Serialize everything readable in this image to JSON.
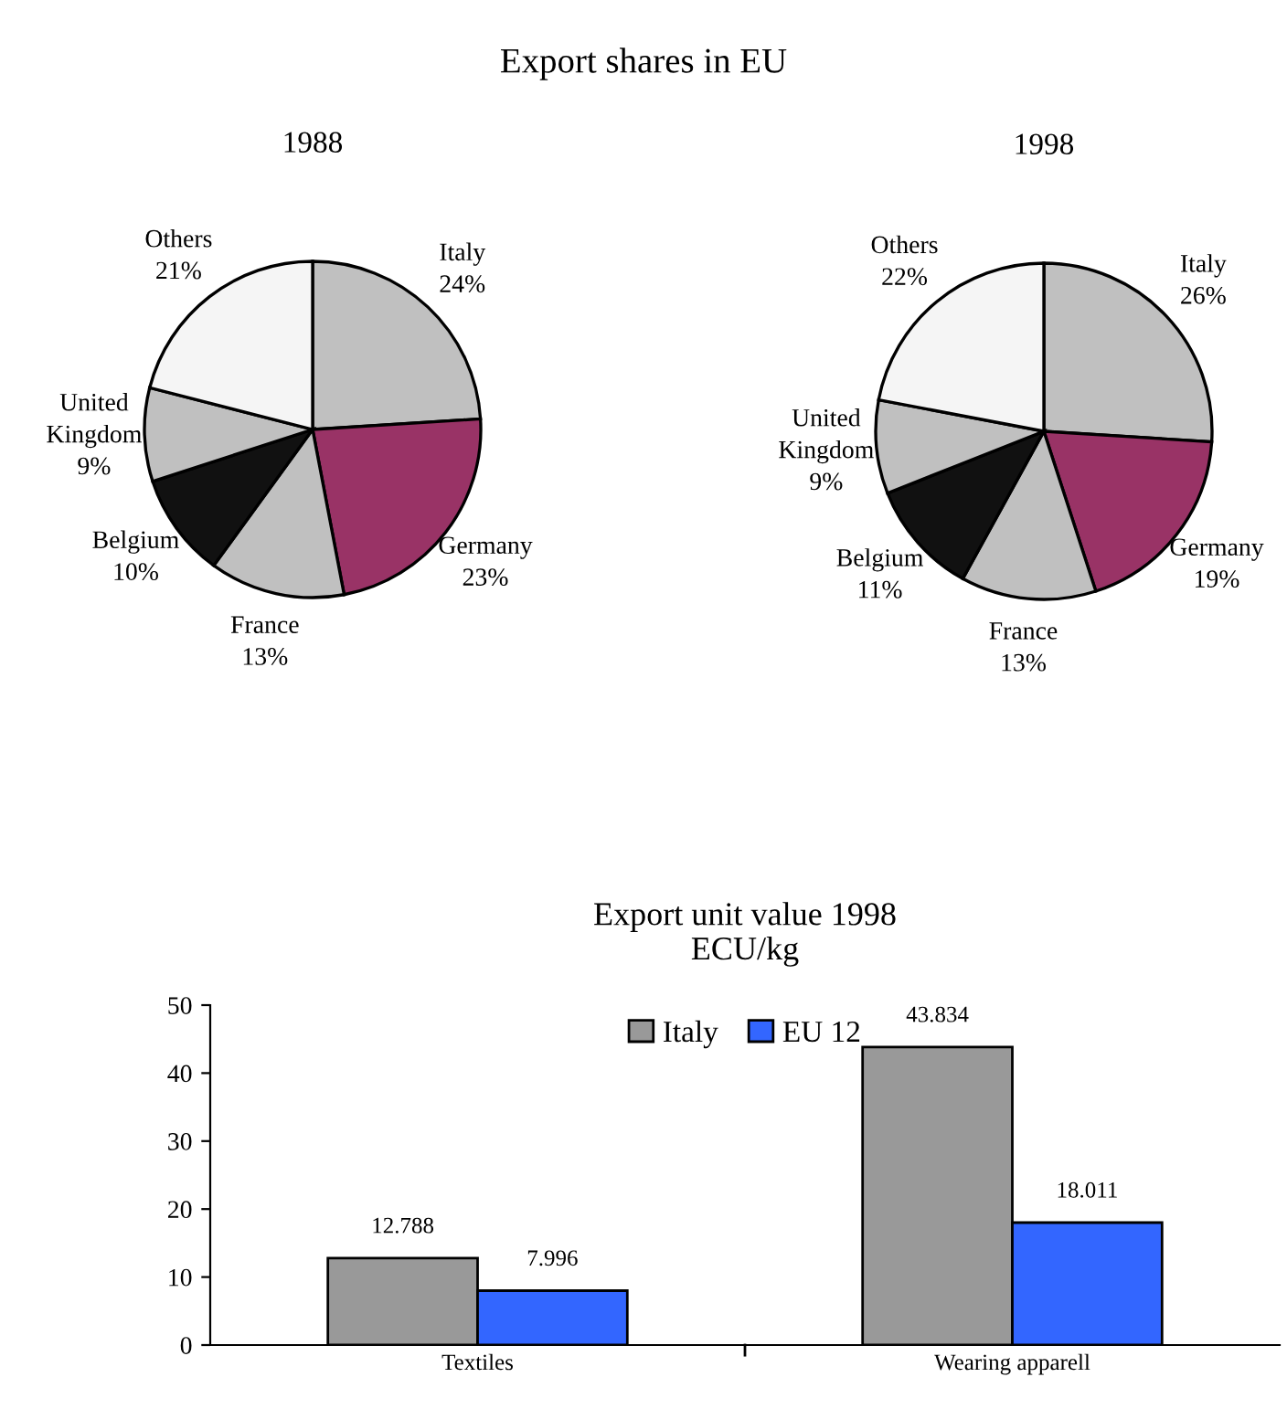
{
  "chart_data": [
    {
      "type": "pie",
      "title": "1988",
      "annotations": [
        "Export shares in EU"
      ],
      "categories": [
        "Italy",
        "Germany",
        "France",
        "Belgium",
        "United Kingdom",
        "Others"
      ],
      "values": [
        24,
        23,
        13,
        10,
        9,
        21
      ],
      "value_labels": [
        "24%",
        "23%",
        "13%",
        "10%",
        "9%",
        "21%"
      ],
      "colors": [
        "#c0c0c0",
        "#993366",
        "#c0c0c0",
        "#111111",
        "#c0c0c0",
        "#f5f5f5"
      ]
    },
    {
      "type": "pie",
      "title": "1998",
      "categories": [
        "Italy",
        "Germany",
        "France",
        "Belgium",
        "United Kingdom",
        "Others"
      ],
      "values": [
        26,
        19,
        13,
        11,
        9,
        22
      ],
      "value_labels": [
        "26%",
        "19%",
        "13%",
        "11%",
        "9%",
        "22%"
      ],
      "colors": [
        "#c0c0c0",
        "#993366",
        "#c0c0c0",
        "#111111",
        "#c0c0c0",
        "#f5f5f5"
      ]
    },
    {
      "type": "bar",
      "title": "Export unit value 1998",
      "subtitle": "ECU/kg",
      "categories": [
        "Textiles",
        "Wearing apparell"
      ],
      "series": [
        {
          "name": "Italy",
          "color": "#999999",
          "values": [
            12.788,
            43.834
          ]
        },
        {
          "name": "EU 12",
          "color": "#3366ff",
          "values": [
            7.996,
            18.011
          ]
        }
      ],
      "ylim": [
        0,
        50
      ],
      "yticks": [
        0,
        10,
        20,
        30,
        40,
        50
      ],
      "data_labels": true,
      "legend": "top",
      "grid": false
    }
  ]
}
